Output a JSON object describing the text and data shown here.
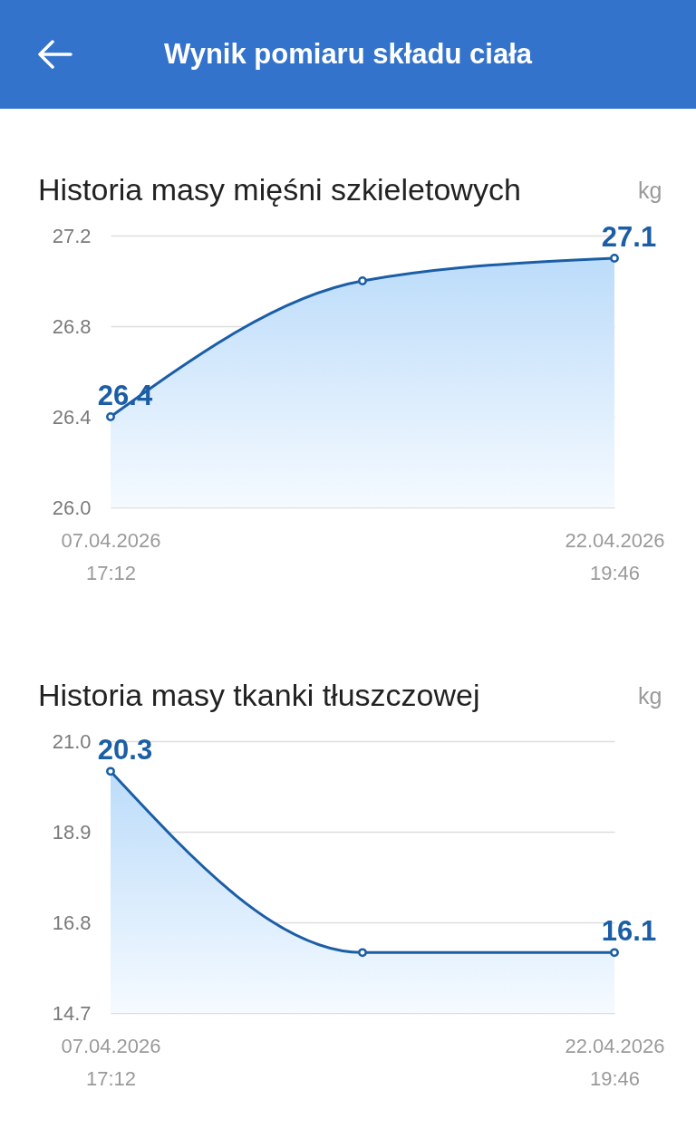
{
  "chart_data": [
    {
      "type": "other",
      "title": "Wynik pomiaru składu ciała"
    },
    {
      "type": "area",
      "title": "Historia masy mięśni szkieletowych",
      "ylabel": "kg",
      "categories": [
        "07.04.2026\n17:12",
        null,
        "22.04.2026\n19:46"
      ],
      "values": [
        26.4,
        27.0,
        27.1
      ],
      "value_labels": [
        "26.4",
        null,
        "27.1"
      ],
      "color": "#1b5ea6",
      "ylim": [
        26.0,
        27.2
      ],
      "yticks": [
        {
          "value": 26.0,
          "label": "26.0"
        },
        26.4,
        26.8,
        27.2
      ],
      "grid": "y",
      "marker": "circle"
    },
    {
      "type": "area",
      "title": "Historia masy tkanki tłuszczowej",
      "ylabel": "kg",
      "categories": [
        "07.04.2026\n17:12",
        null,
        "22.04.2026\n19:46"
      ],
      "values": [
        20.3,
        16.1,
        16.1
      ],
      "value_labels": [
        "20.3",
        null,
        "16.1"
      ],
      "color": "#1b5ea6",
      "ylim": [
        14.7,
        21.0
      ],
      "yticks": [
        14.7,
        16.8,
        18.9,
        {
          "value": 21.0,
          "label": "21.0"
        }
      ],
      "grid": "y",
      "marker": "circle"
    }
  ]
}
